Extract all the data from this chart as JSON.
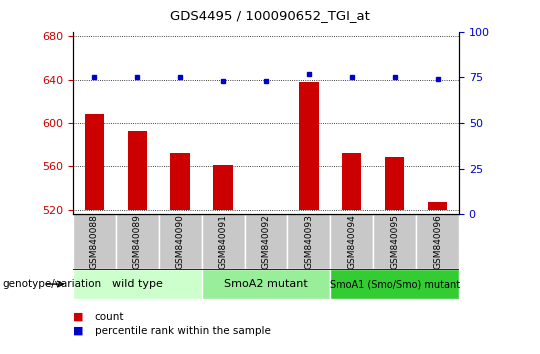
{
  "title": "GDS4495 / 100090652_TGI_at",
  "samples": [
    "GSM840088",
    "GSM840089",
    "GSM840090",
    "GSM840091",
    "GSM840092",
    "GSM840093",
    "GSM840094",
    "GSM840095",
    "GSM840096"
  ],
  "counts": [
    608,
    593,
    572,
    561,
    520,
    638,
    572,
    569,
    527
  ],
  "percentile_ranks": [
    75,
    75,
    75,
    73,
    73,
    77,
    75,
    75,
    74
  ],
  "ylim_left": [
    516,
    684
  ],
  "ylim_right": [
    0,
    100
  ],
  "yticks_left": [
    520,
    560,
    600,
    640,
    680
  ],
  "yticks_right": [
    0,
    25,
    50,
    75,
    100
  ],
  "bar_color": "#cc0000",
  "dot_color": "#0000cc",
  "bar_base": 520,
  "groups": [
    {
      "label": "wild type",
      "start": 0,
      "end": 3,
      "color": "#ccffcc"
    },
    {
      "label": "SmoA2 mutant",
      "start": 3,
      "end": 6,
      "color": "#99ee99"
    },
    {
      "label": "SmoA1 (Smo/Smo) mutant",
      "start": 6,
      "end": 9,
      "color": "#33cc33"
    }
  ],
  "legend_items": [
    {
      "label": "count",
      "color": "#cc0000"
    },
    {
      "label": "percentile rank within the sample",
      "color": "#0000cc"
    }
  ],
  "genotype_label": "genotype/variation",
  "tick_bg_color": "#bbbbbb",
  "axis_color_left": "#cc0000",
  "axis_color_right": "#0000cc"
}
